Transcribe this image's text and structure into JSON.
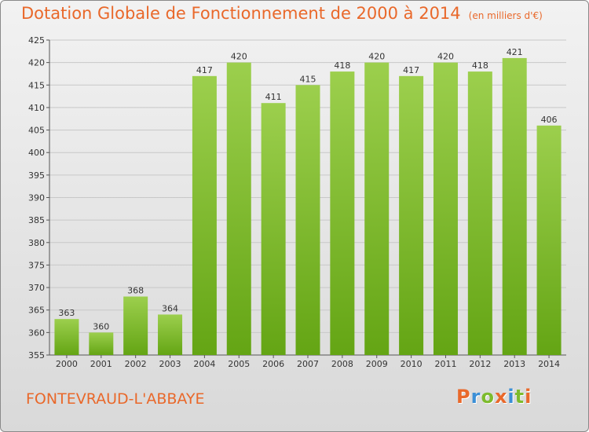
{
  "title": "Dotation Globale de Fonctionnement de 2000 à 2014",
  "unit": "(en milliers d'€)",
  "commune": "FONTEVRAUD-L'ABBAYE",
  "logo": "Proxiti",
  "logo_colors": [
    "#e9682a",
    "#3b8fd6",
    "#7dbb2d",
    "#e9682a",
    "#3b8fd6",
    "#7dbb2d",
    "#e9682a"
  ],
  "colors": {
    "bar_light": "#9ccf4d",
    "bar_dark": "#64a514",
    "accent": "#e9682a",
    "grid": "#c8c8c8"
  },
  "chart_data": {
    "type": "bar",
    "categories": [
      "2000",
      "2001",
      "2002",
      "2003",
      "2004",
      "2005",
      "2006",
      "2007",
      "2008",
      "2009",
      "2010",
      "2011",
      "2012",
      "2013",
      "2014"
    ],
    "values": [
      363,
      360,
      368,
      364,
      417,
      420,
      411,
      415,
      418,
      420,
      417,
      420,
      418,
      421,
      406
    ],
    "ylim": [
      355,
      425
    ],
    "yticks": [
      355,
      360,
      365,
      370,
      375,
      380,
      385,
      390,
      395,
      400,
      405,
      410,
      415,
      420,
      425
    ],
    "grid": true
  }
}
